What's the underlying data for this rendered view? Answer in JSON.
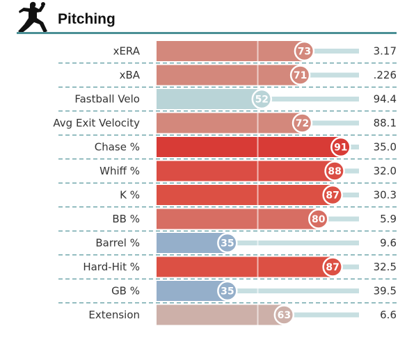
{
  "section": {
    "title": "Pitching",
    "icon": "pitcher-silhouette-icon"
  },
  "colors": {
    "rule": "#4a8f95",
    "track": "#c7dfe1",
    "divider": "#2f7f86",
    "scale_high": "#d83b36",
    "scale_mid": "#b9d4d7",
    "scale_low": "#8ba9c7"
  },
  "chart_data": {
    "type": "bar",
    "orientation": "horizontal",
    "xlim": [
      0,
      100
    ],
    "markers": [
      50
    ],
    "categories": [
      "xERA",
      "xBA",
      "Fastball Velo",
      "Avg Exit Velocity",
      "Chase %",
      "Whiff %",
      "K %",
      "BB %",
      "Barrel %",
      "Hard-Hit %",
      "GB %",
      "Extension"
    ],
    "percentiles": [
      73,
      71,
      52,
      72,
      91,
      88,
      87,
      80,
      35,
      87,
      35,
      63
    ],
    "values": [
      "3.17",
      ".226",
      "94.4",
      "88.1",
      "35.0",
      "32.0",
      "30.3",
      "5.9",
      "9.6",
      "32.5",
      "39.5",
      "6.6"
    ],
    "bar_colors": [
      "#d3887c",
      "#d3887c",
      "#b9d4d7",
      "#d3887c",
      "#d83b36",
      "#db4d44",
      "#dc5044",
      "#d76e63",
      "#95afca",
      "#dc5044",
      "#95afca",
      "#cdb0a9"
    ]
  }
}
